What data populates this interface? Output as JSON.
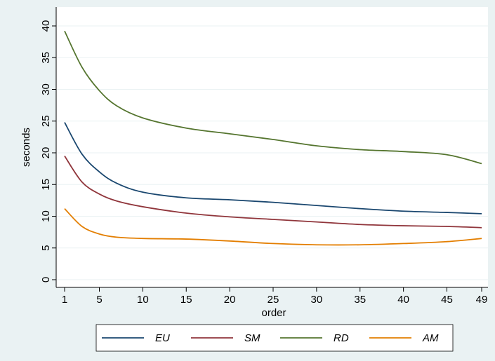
{
  "chart_data": {
    "type": "line",
    "xlabel": "order",
    "ylabel": "seconds",
    "xlim": [
      1,
      49
    ],
    "ylim": [
      0,
      40
    ],
    "xticks": [
      1,
      5,
      10,
      15,
      20,
      25,
      30,
      35,
      40,
      45,
      49
    ],
    "yticks": [
      0,
      5,
      10,
      15,
      20,
      25,
      30,
      35,
      40
    ],
    "grid": true,
    "legend_position": "bottom",
    "series": [
      {
        "name": "EU",
        "color": "#1a476f",
        "x": [
          1,
          3,
          5,
          7,
          10,
          15,
          20,
          25,
          30,
          35,
          40,
          45,
          49
        ],
        "y": [
          24.8,
          19.8,
          17.0,
          15.2,
          13.8,
          12.9,
          12.6,
          12.2,
          11.7,
          11.2,
          10.8,
          10.6,
          10.4
        ]
      },
      {
        "name": "SM",
        "color": "#90353b",
        "x": [
          1,
          3,
          5,
          7,
          10,
          15,
          20,
          25,
          30,
          35,
          40,
          45,
          49
        ],
        "y": [
          19.5,
          15.4,
          13.5,
          12.4,
          11.5,
          10.5,
          9.9,
          9.5,
          9.1,
          8.7,
          8.5,
          8.4,
          8.2
        ]
      },
      {
        "name": "RD",
        "color": "#55752f",
        "x": [
          1,
          3,
          5,
          7,
          10,
          15,
          20,
          25,
          30,
          35,
          40,
          45,
          49
        ],
        "y": [
          39.2,
          33.5,
          29.8,
          27.4,
          25.5,
          23.9,
          23.0,
          22.1,
          21.1,
          20.5,
          20.2,
          19.7,
          18.3
        ]
      },
      {
        "name": "AM",
        "color": "#e37e00",
        "x": [
          1,
          3,
          5,
          7,
          10,
          15,
          20,
          25,
          30,
          35,
          40,
          45,
          49
        ],
        "y": [
          11.2,
          8.4,
          7.2,
          6.7,
          6.5,
          6.4,
          6.1,
          5.7,
          5.5,
          5.5,
          5.7,
          6.0,
          6.5
        ]
      }
    ]
  }
}
